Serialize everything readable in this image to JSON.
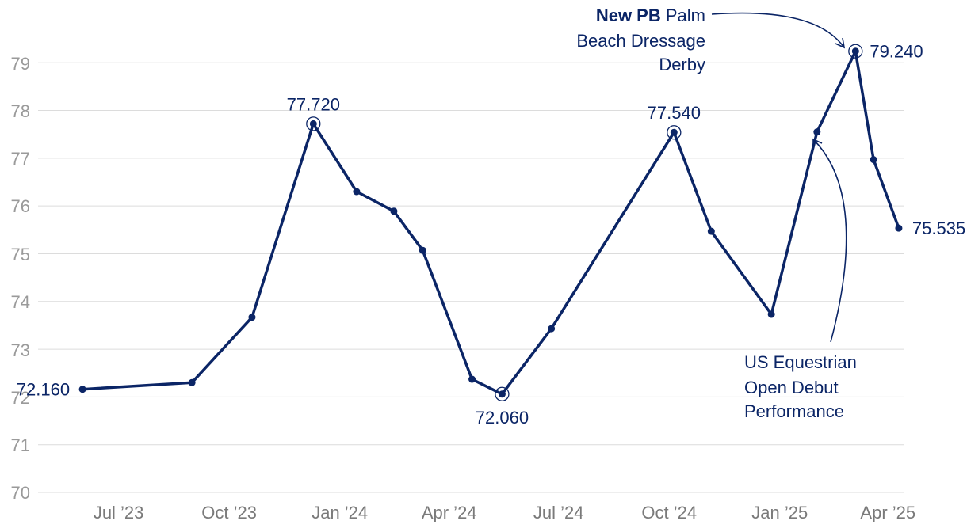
{
  "chart_data": {
    "type": "line",
    "color": "#0b2566",
    "ylim": [
      70,
      79.6
    ],
    "y_ticks": [
      "70",
      "71",
      "72",
      "73",
      "74",
      "75",
      "76",
      "77",
      "78",
      "79"
    ],
    "x_ticks": [
      "Jul ’23",
      "Oct ’23",
      "Jan ’24",
      "Apr ’24",
      "Jul ’24",
      "Oct ’24",
      "Jan ’25",
      "Apr ’25"
    ],
    "x_tick_dates": [
      "2023-07-01",
      "2023-10-01",
      "2024-01-01",
      "2024-04-01",
      "2024-07-01",
      "2024-10-01",
      "2025-01-01",
      "2025-04-01"
    ],
    "xlim": [
      "2023-04-25",
      "2025-04-14"
    ],
    "grid": true,
    "points": [
      {
        "x": "2023-06-01",
        "y": 72.16
      },
      {
        "x": "2023-08-31",
        "y": 72.3
      },
      {
        "x": "2023-10-20",
        "y": 73.67
      },
      {
        "x": "2023-12-10",
        "y": 77.72
      },
      {
        "x": "2024-01-15",
        "y": 76.3
      },
      {
        "x": "2024-02-15",
        "y": 75.89
      },
      {
        "x": "2024-03-10",
        "y": 75.07
      },
      {
        "x": "2024-04-20",
        "y": 72.37
      },
      {
        "x": "2024-05-15",
        "y": 72.06
      },
      {
        "x": "2024-06-25",
        "y": 73.43
      },
      {
        "x": "2024-10-05",
        "y": 77.54
      },
      {
        "x": "2024-11-05",
        "y": 75.47
      },
      {
        "x": "2024-12-25",
        "y": 73.73
      },
      {
        "x": "2025-02-01",
        "y": 77.55
      },
      {
        "x": "2025-03-05",
        "y": 79.24
      },
      {
        "x": "2025-03-20",
        "y": 76.97
      },
      {
        "x": "2025-04-10",
        "y": 75.535
      }
    ],
    "labels": [
      "72.160",
      "77.720",
      "72.060",
      "77.540",
      "79.240",
      "75.535"
    ],
    "annotations": {
      "pb": {
        "bold": "New PB",
        "line1_rest": " Palm",
        "line2": "Beach Dressage",
        "line3": "Derby"
      },
      "us": {
        "line1": "US Equestrian",
        "line2": "Open Debut",
        "line3": "Performance"
      }
    }
  }
}
